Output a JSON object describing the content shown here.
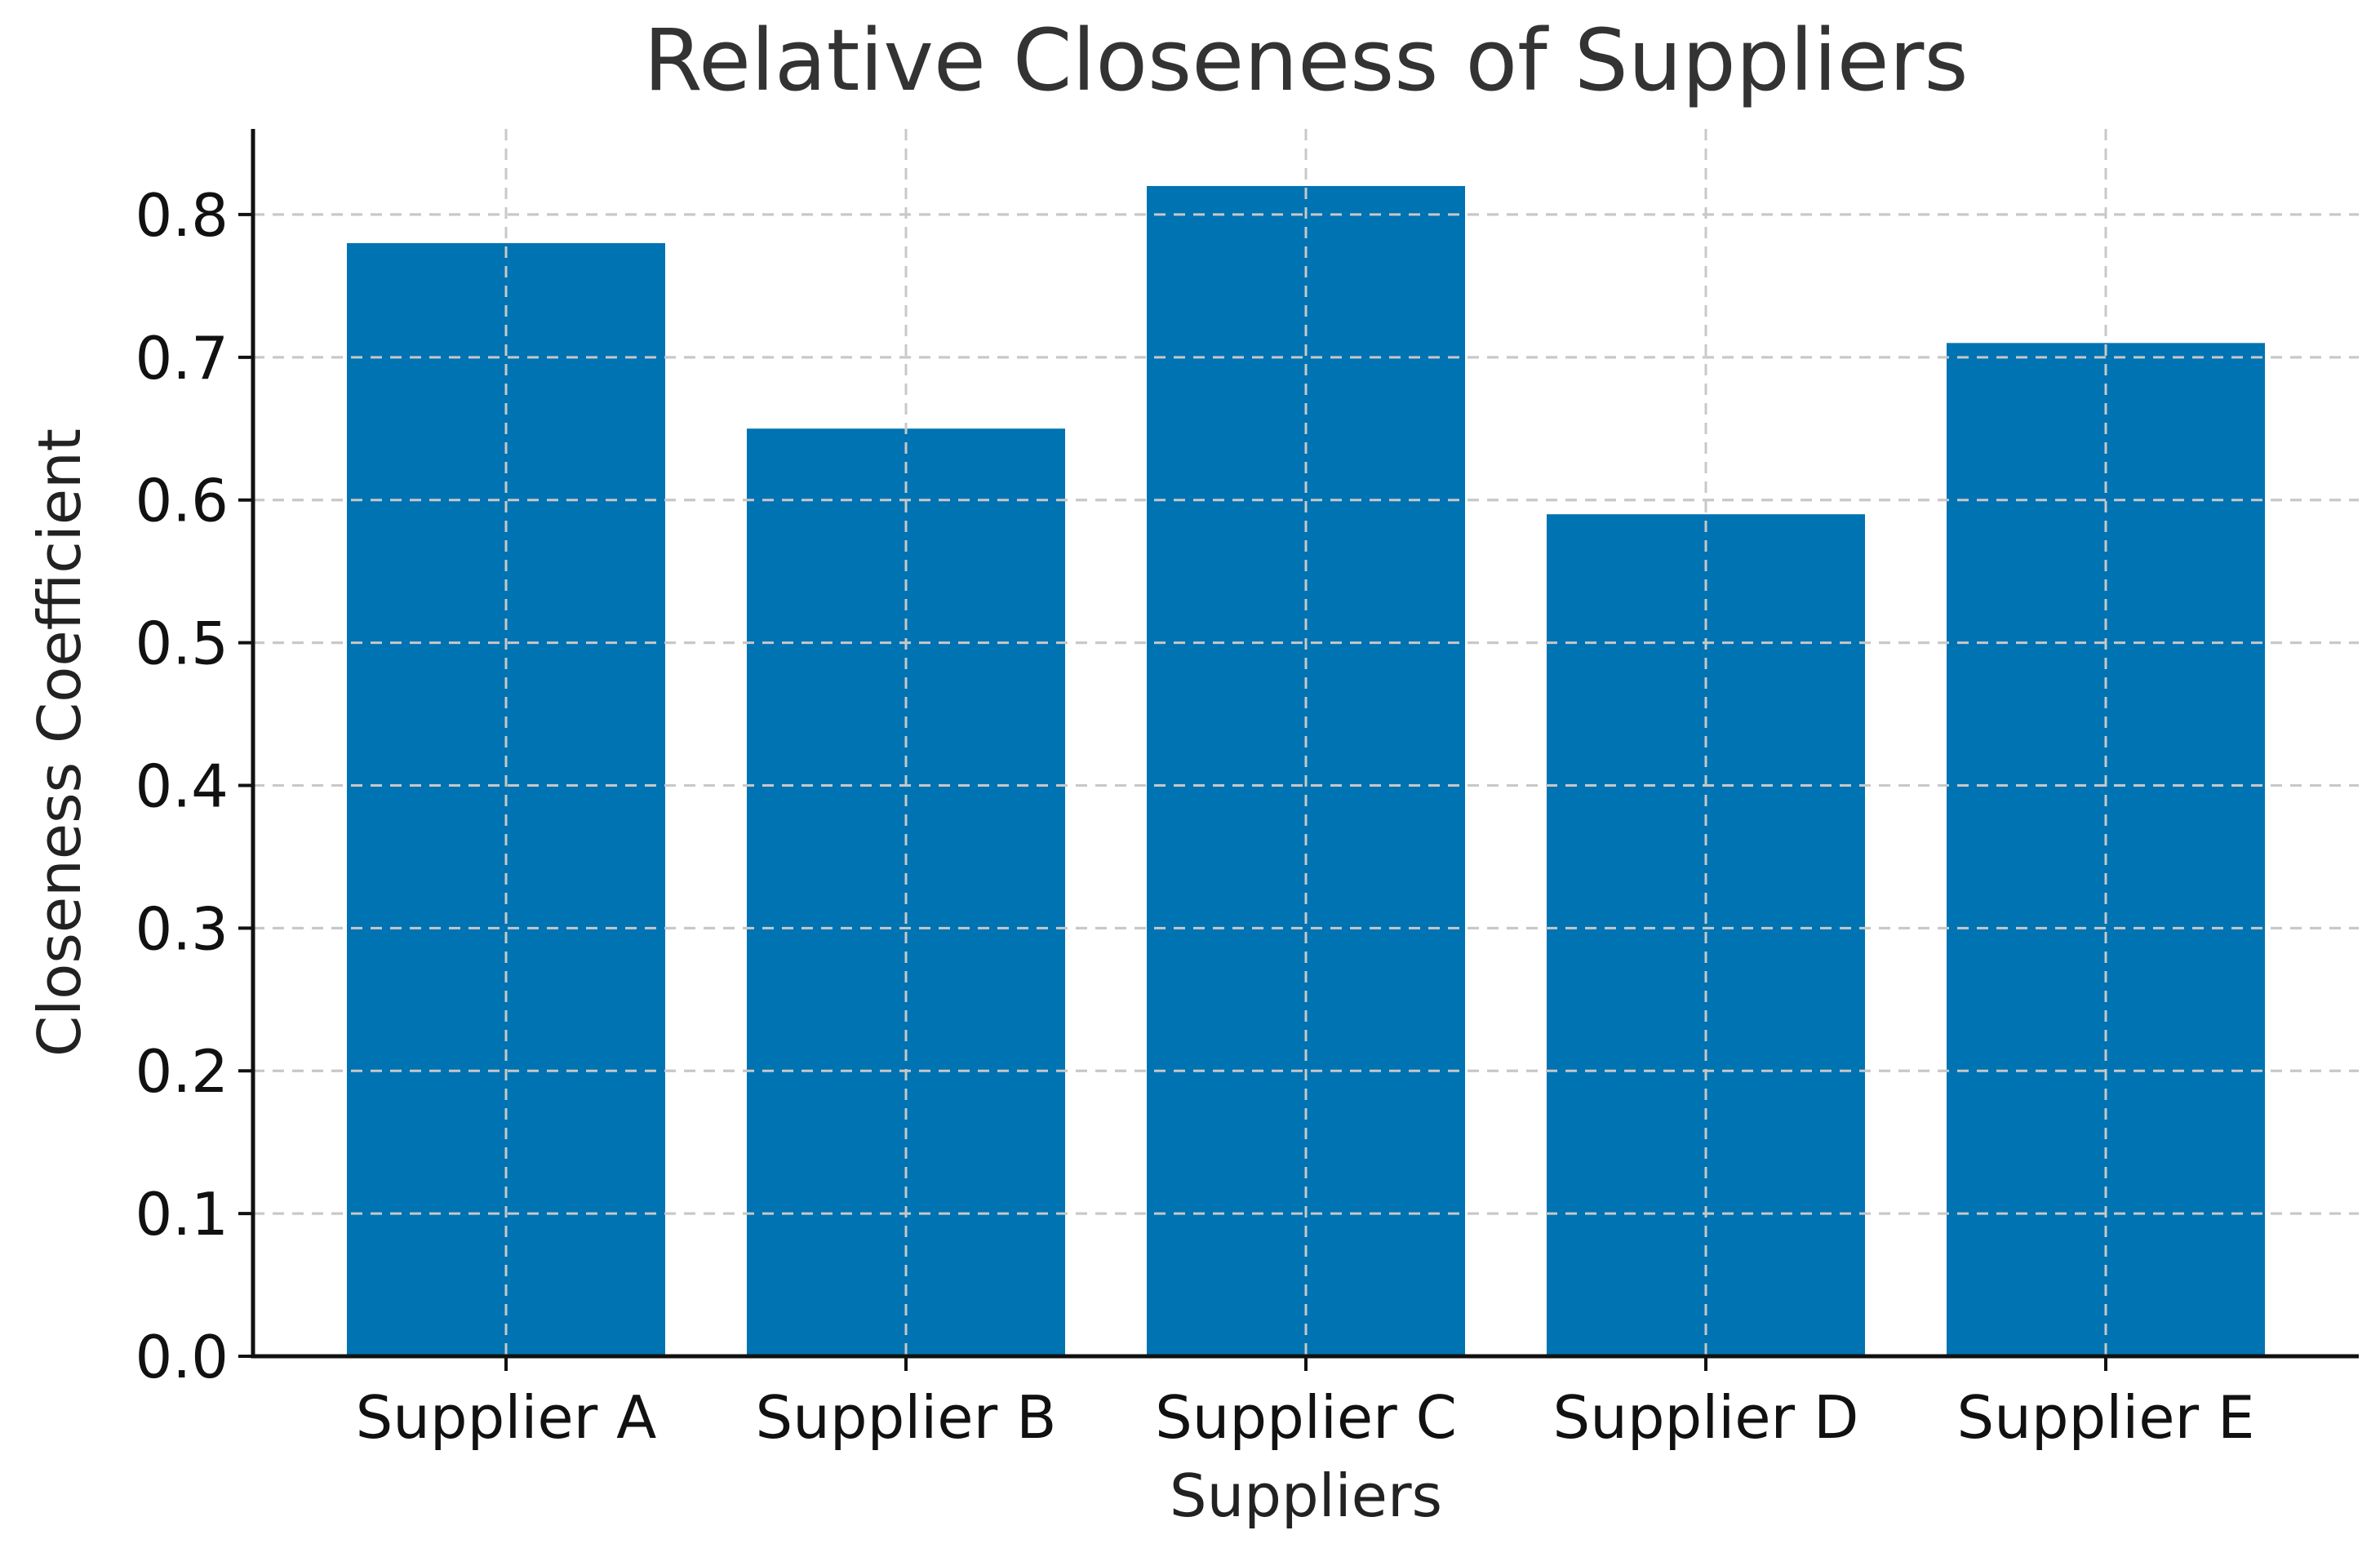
{
  "chart_data": {
    "type": "bar",
    "title": "Relative Closeness of Suppliers",
    "xlabel": "Suppliers",
    "ylabel": "Closeness Coefficient",
    "categories": [
      "Supplier A",
      "Supplier B",
      "Supplier C",
      "Supplier D",
      "Supplier E"
    ],
    "values": [
      0.78,
      0.65,
      0.82,
      0.59,
      0.71
    ],
    "ylim": [
      0,
      0.86
    ],
    "yticks": [
      0.0,
      0.1,
      0.2,
      0.3,
      0.4,
      0.5,
      0.6,
      0.7,
      0.8
    ],
    "ytick_labels": [
      "0.0",
      "0.1",
      "0.2",
      "0.3",
      "0.4",
      "0.5",
      "0.6",
      "0.7",
      "0.8"
    ],
    "grid": true,
    "bar_color": "#0073b2"
  }
}
